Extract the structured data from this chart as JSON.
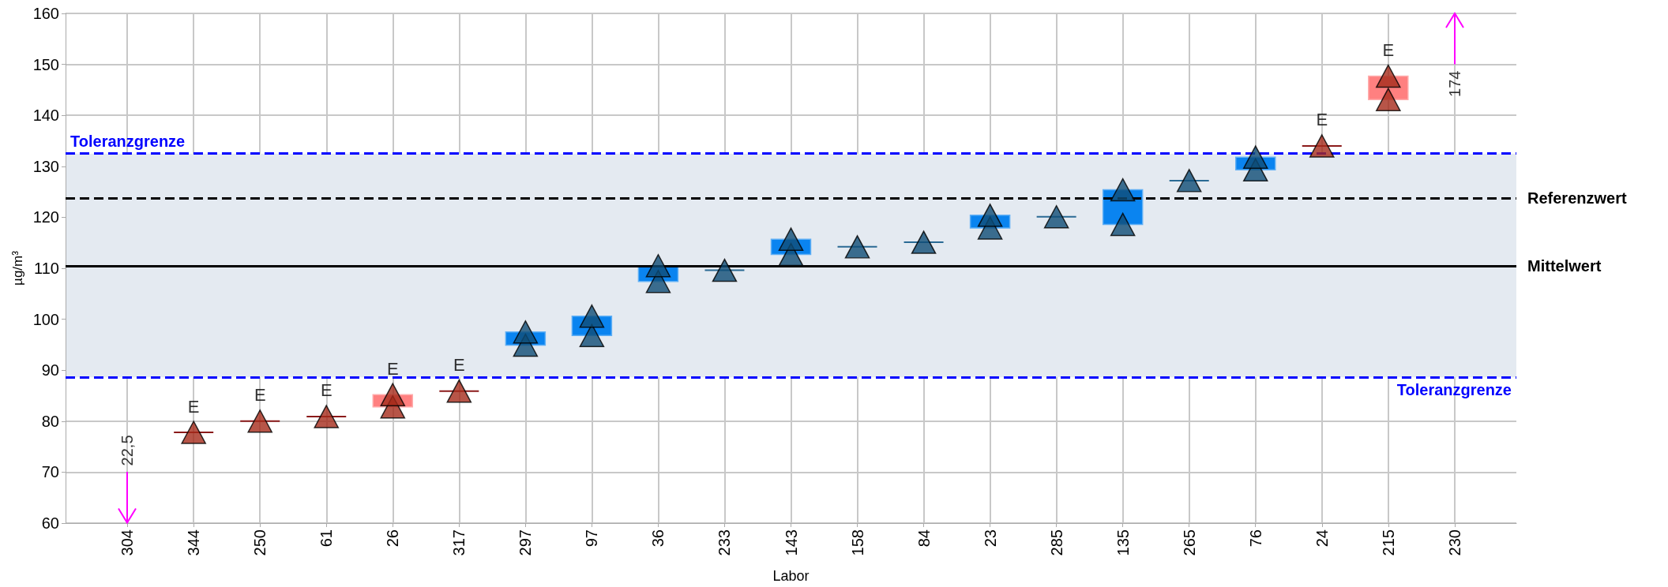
{
  "chart_data": {
    "type": "scatter",
    "xlabel": "Labor",
    "ylabel": "µg/m³",
    "categories": [
      "304",
      "344",
      "250",
      "61",
      "26",
      "317",
      "297",
      "97",
      "36",
      "233",
      "143",
      "158",
      "84",
      "23",
      "285",
      "135",
      "265",
      "76",
      "24",
      "215",
      "230"
    ],
    "series": [
      {
        "type": "bar",
        "base": [
          null,
          77.8,
          80.0,
          80.9,
          82.8,
          85.9,
          94.9,
          96.8,
          107.4,
          109.6,
          112.7,
          114.2,
          115.1,
          117.9,
          120.1,
          118.6,
          127.2,
          129.3,
          134.0,
          143.1,
          null
        ],
        "values": [
          null,
          0,
          0,
          0,
          2.4,
          0,
          2.6,
          3.8,
          3.1,
          0,
          3.0,
          0,
          0,
          2.5,
          0,
          6.8,
          0,
          2.5,
          0,
          4.6,
          null
        ],
        "colors": [
          null,
          "#8b1a1a",
          "#8b1a1a",
          "#8b1a1a",
          "#ff8080",
          "#8b1a1a",
          "#0a84f0",
          "#0a84f0",
          "#0a84f0",
          "#2a6a94",
          "#0a84f0",
          "#2a6a94",
          "#2a6a94",
          "#0a84f0",
          "#2a6a94",
          "#0a84f0",
          "#2a6a94",
          "#0a84f0",
          "#8b1a1a",
          "#ff8080",
          null
        ]
      },
      {
        "values": [
          null,
          77.8,
          80.0,
          80.9,
          82.8,
          85.9,
          94.9,
          96.8,
          107.4,
          109.6,
          112.7,
          114.2,
          115.1,
          117.9,
          120.1,
          118.6,
          127.2,
          129.3,
          134.0,
          143.1,
          null
        ],
        "colors": [
          null,
          "#a52a1a",
          "#a52a1a",
          "#a52a1a",
          "#a52a1a",
          "#a52a1a",
          "#0f4c75",
          "#0f4c75",
          "#0f4c75",
          "#0f4c75",
          "#0f4c75",
          "#0f4c75",
          "#0f4c75",
          "#0f4c75",
          "#0f4c75",
          "#0f4c75",
          "#0f4c75",
          "#0f4c75",
          "#a52a1a",
          "#a52a1a",
          null
        ]
      },
      {
        "values": [
          null,
          null,
          null,
          null,
          85.2,
          null,
          97.5,
          100.6,
          110.5,
          null,
          115.7,
          null,
          null,
          120.4,
          null,
          125.4,
          null,
          131.8,
          null,
          147.7,
          null
        ],
        "colors": [
          null,
          null,
          null,
          null,
          "#a52a1a",
          null,
          "#0f4c75",
          "#0f4c75",
          "#0f4c75",
          null,
          "#0f4c75",
          null,
          null,
          "#0f4c75",
          null,
          "#0f4c75",
          null,
          "#0f4c75",
          null,
          "#a52a1a",
          null
        ]
      }
    ],
    "marker": "triangle",
    "ylim": [
      60,
      160
    ],
    "yticks": [
      60,
      70,
      80,
      90,
      100,
      110,
      120,
      130,
      140,
      150,
      160
    ],
    "grid": true,
    "ref_lines": [
      {
        "axis": "y",
        "value": 132.5,
        "label": "Toleranzgrenze",
        "color": "#0000ff",
        "line_style": "dashed"
      },
      {
        "axis": "y",
        "value": 88.6,
        "label": "Toleranzgrenze",
        "color": "#0000ff",
        "line_style": "dashed"
      },
      {
        "axis": "y",
        "value": 123.8,
        "label": "Referenzwert",
        "color": "#000000",
        "line_style": "dashed"
      },
      {
        "axis": "y",
        "value": 110.4,
        "label": "Mittelwert",
        "color": "#000000",
        "line_style": "solid"
      }
    ],
    "bands": [
      {
        "axis": "y",
        "from": 88.6,
        "to": 132.5,
        "color": "#e4eaf1"
      }
    ],
    "annotations": [
      "22,5",
      {
        "text": "E",
        "x": "344",
        "y": 77.8
      },
      {
        "text": "E",
        "x": "250",
        "y": 80.0
      },
      {
        "text": "E",
        "x": "61",
        "y": 80.9
      },
      {
        "text": "E",
        "x": "26",
        "y": 85.2
      },
      {
        "text": "E",
        "x": "317",
        "y": 85.9
      },
      {
        "text": "E",
        "x": "24",
        "y": 134.0
      },
      {
        "text": "E",
        "x": "215",
        "y": 147.7
      },
      "174"
    ]
  }
}
